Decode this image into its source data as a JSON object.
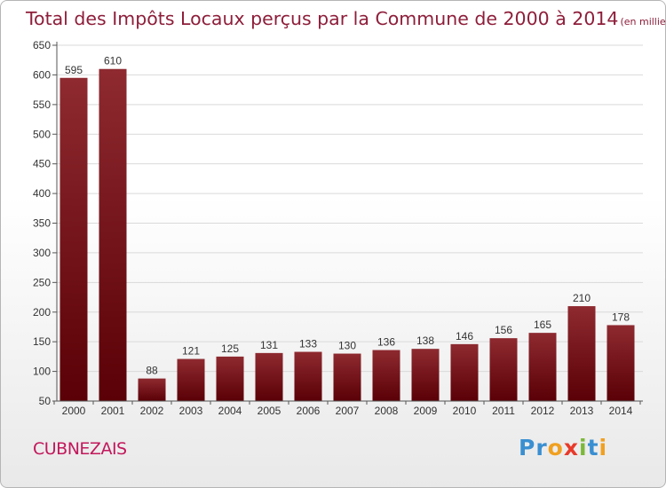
{
  "chart_data": {
    "type": "bar",
    "title": "Total des Impôts Locaux perçus par la Commune de 2000 à 2014",
    "subtitle": "(en milliers d'€)",
    "xlabel": "",
    "ylabel": "",
    "categories": [
      "2000",
      "2001",
      "2002",
      "2003",
      "2004",
      "2005",
      "2006",
      "2007",
      "2008",
      "2009",
      "2010",
      "2011",
      "2012",
      "2013",
      "2014"
    ],
    "values": [
      595,
      610,
      88,
      121,
      125,
      131,
      133,
      130,
      136,
      138,
      146,
      156,
      165,
      210,
      178
    ],
    "ylim": [
      50,
      650
    ],
    "yticks": [
      50,
      100,
      150,
      200,
      250,
      300,
      350,
      400,
      450,
      500,
      550,
      600,
      650
    ],
    "grid": true,
    "bar_color": "#8b1a1f"
  },
  "footer": {
    "commune": "CUBNEZAIS",
    "logo_letters": [
      {
        "ch": "P",
        "color": "#3a8fd1"
      },
      {
        "ch": "r",
        "color": "#3a8fd1"
      },
      {
        "ch": "o",
        "color": "#f0a020"
      },
      {
        "ch": "x",
        "color": "#e83a2a"
      },
      {
        "ch": "i",
        "color": "#7cb83a"
      },
      {
        "ch": "t",
        "color": "#3a8fd1"
      },
      {
        "ch": "i",
        "color": "#f0a020"
      }
    ]
  }
}
